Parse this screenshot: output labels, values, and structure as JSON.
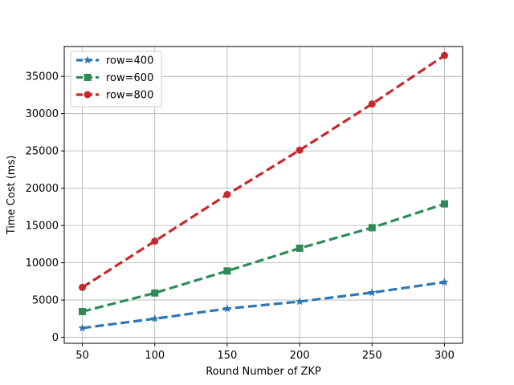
{
  "chart_data": {
    "type": "line",
    "title": "",
    "xlabel": "Round Number of ZKP",
    "ylabel": "Time Cost (ms)",
    "x": [
      50,
      100,
      150,
      200,
      250,
      300
    ],
    "xticks": [
      50,
      100,
      150,
      200,
      250,
      300
    ],
    "yticks": [
      0,
      5000,
      10000,
      15000,
      20000,
      25000,
      30000,
      35000
    ],
    "xlim": [
      37.5,
      312.5
    ],
    "ylim": [
      -800,
      39000
    ],
    "grid": true,
    "legend_position": "upper-left",
    "series": [
      {
        "name": "row=400",
        "color": "#2a77b4",
        "marker": "star",
        "values": [
          1250,
          2500,
          3850,
          4800,
          6000,
          7400
        ]
      },
      {
        "name": "row=600",
        "color": "#2e8b57",
        "marker": "square",
        "values": [
          3450,
          5950,
          8900,
          11950,
          14700,
          17900
        ]
      },
      {
        "name": "row=800",
        "color": "#c7282b",
        "marker": "circle",
        "values": [
          6700,
          12900,
          19150,
          25100,
          31300,
          37800
        ]
      }
    ]
  }
}
